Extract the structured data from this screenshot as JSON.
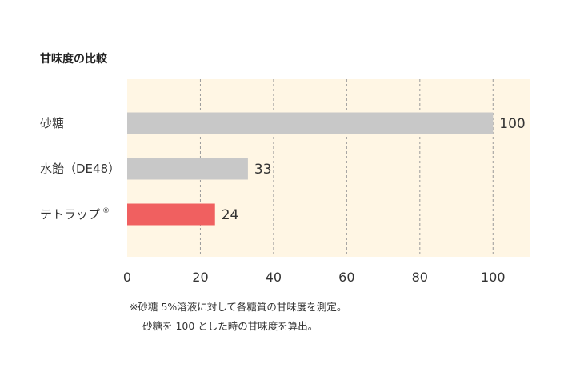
{
  "chart_data": {
    "type": "bar",
    "orientation": "horizontal",
    "title": "甘味度の比較",
    "categories": [
      "砂糖",
      "水飴（DE48）",
      "テトラップ"
    ],
    "category_marks": [
      "",
      "",
      "®"
    ],
    "values": [
      100,
      33,
      24
    ],
    "value_labels": [
      "100",
      "33",
      "24"
    ],
    "bar_colors": [
      "#c8c8c8",
      "#c8c8c8",
      "#f06060"
    ],
    "xlim": [
      0,
      110
    ],
    "xticks": [
      0,
      20,
      40,
      60,
      80,
      100
    ],
    "grid": true,
    "background_color": "#fff6e4",
    "notes": [
      "※砂糖 5%溶液に対して各糖質の甘味度を測定。",
      "砂糖を 100 とした時の甘味度を算出。"
    ]
  }
}
